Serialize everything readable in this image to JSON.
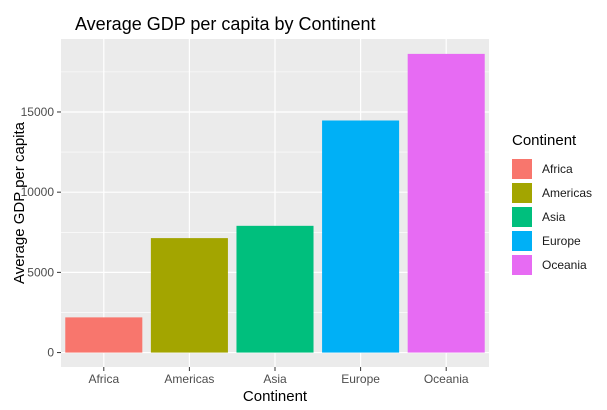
{
  "chart_data": {
    "type": "bar",
    "title": "Average GDP per capita by Continent",
    "xlabel": "Continent",
    "ylabel": "Average GDP per capita",
    "categories": [
      "Africa",
      "Americas",
      "Asia",
      "Europe",
      "Oceania"
    ],
    "values": [
      2194,
      7136,
      7902,
      14469,
      18622
    ],
    "colors": [
      "#F8766D",
      "#A3A500",
      "#00BF7D",
      "#00B0F6",
      "#E76BF3"
    ],
    "ylim": [
      -900,
      19550
    ],
    "yticks": [
      0,
      5000,
      10000,
      15000
    ],
    "grid": true,
    "legend": {
      "title": "Continent",
      "position": "right",
      "items": [
        "Africa",
        "Americas",
        "Asia",
        "Europe",
        "Oceania"
      ]
    }
  }
}
